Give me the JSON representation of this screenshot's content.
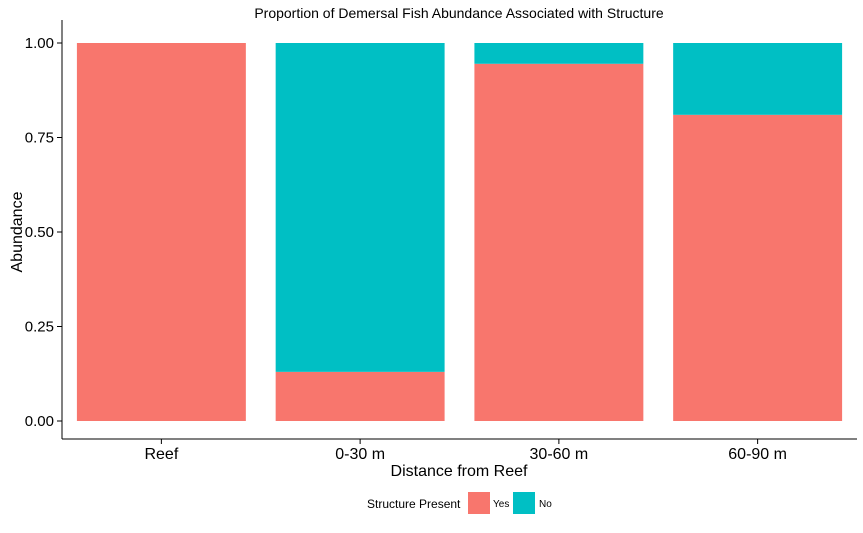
{
  "chart_data": {
    "type": "bar",
    "stacked": true,
    "title": "Proportion of Demersal Fish Abundance Associated with Structure",
    "xlabel": "Distance from Reef",
    "ylabel": "Abundance",
    "categories": [
      "Reef",
      "0-30 m",
      "30-60 m",
      "60-90 m"
    ],
    "series": [
      {
        "name": "Yes",
        "color": "#F8766D",
        "values": [
          1.0,
          0.13,
          0.945,
          0.81
        ]
      },
      {
        "name": "No",
        "color": "#00BFC4",
        "values": [
          0.0,
          0.87,
          0.055,
          0.19
        ]
      }
    ],
    "ylim": [
      0,
      1
    ],
    "yticks": [
      "0.00",
      "0.25",
      "0.50",
      "0.75",
      "1.00"
    ],
    "grid": false,
    "legend": {
      "title": "Structure Present",
      "position": "bottom",
      "entries": [
        "Yes",
        "No"
      ]
    }
  }
}
